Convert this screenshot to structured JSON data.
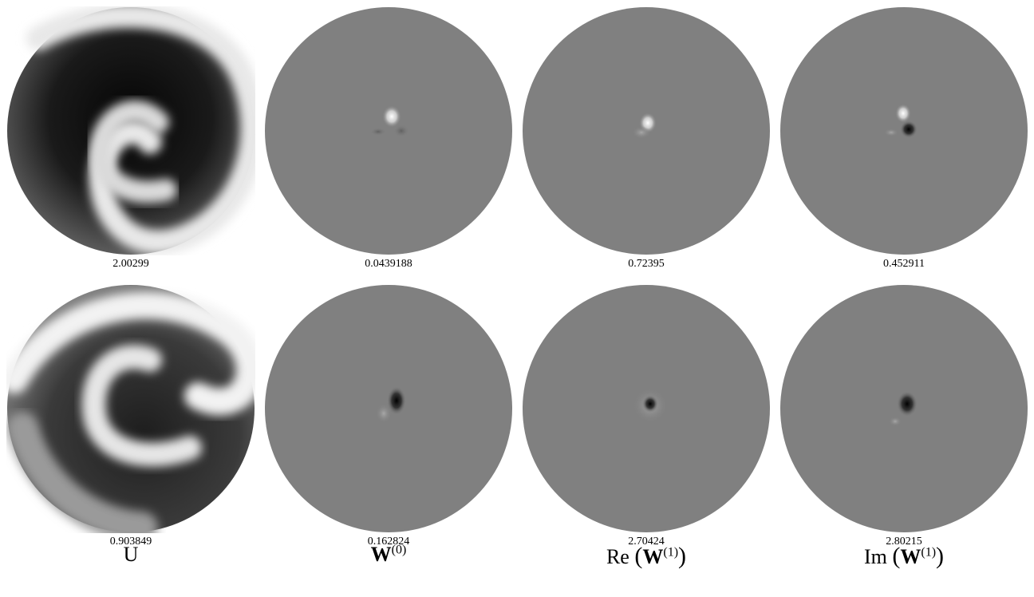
{
  "panels": {
    "r1c1_value": "2.00299",
    "r1c2_value": "0.0439188",
    "r1c3_value": "0.72395",
    "r1c4_value": "0.452911",
    "r2c1_value": "0.903849",
    "r2c2_value": "0.162824",
    "r2c3_value": "2.70424",
    "r2c4_value": "2.80215"
  },
  "columns": {
    "c1_label": "U",
    "c2_base": "W",
    "c2_sup": "(0)",
    "c3_prefix": "Re",
    "c3_base": "W",
    "c3_sup": "(1)",
    "c4_prefix": "Im",
    "c4_base": "W",
    "c4_sup": "(1)"
  },
  "colors": {
    "field_grey": "#808080",
    "background": "#ffffff"
  }
}
